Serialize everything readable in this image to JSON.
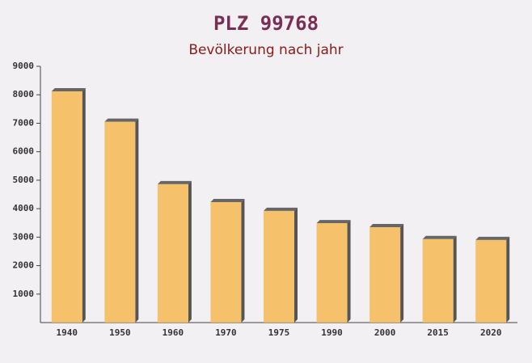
{
  "chart_data": {
    "type": "bar",
    "title": "PLZ 99768",
    "subtitle": "Bevölkerung nach jahr",
    "categories": [
      "1940",
      "1950",
      "1960",
      "1970",
      "1975",
      "1990",
      "2000",
      "2015",
      "2020"
    ],
    "values": [
      8120,
      7050,
      4860,
      4230,
      3920,
      3490,
      3350,
      2930,
      2900
    ],
    "color": "#f5bd5c",
    "ylim": [
      0,
      9000
    ],
    "yticks": [
      1000,
      2000,
      3000,
      4000,
      5000,
      6000,
      7000,
      8000,
      9000
    ],
    "grid": false
  }
}
